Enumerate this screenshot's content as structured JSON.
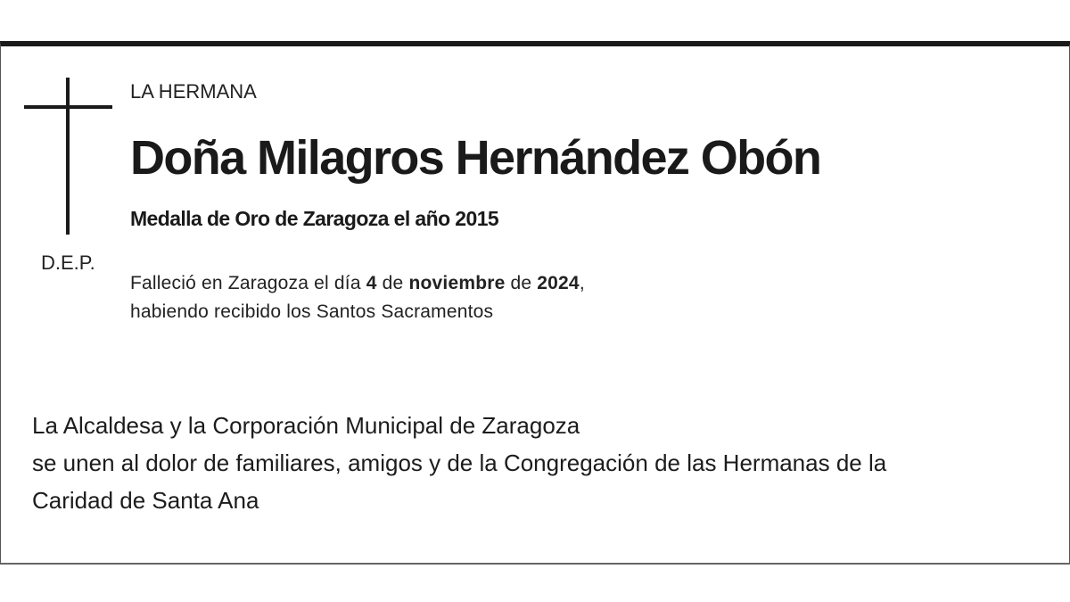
{
  "notice": {
    "symbol_text": "D.E.P.",
    "relation": "LA HERMANA",
    "name": "Doña Milagros Hernández Obón",
    "distinction": "Medalla de Oro de Zaragoza el año 2015",
    "death": {
      "prefix": "Falleció en Zaragoza el día ",
      "day": "4",
      "de1": " de ",
      "month": "noviembre",
      "de2": " de ",
      "year": "2024",
      "suffix": ",",
      "line2": "habiendo recibido los Santos Sacramentos"
    },
    "message": [
      "La Alcaldesa y la Corporación Municipal de Zaragoza",
      "se unen al dolor de familiares, amigos y de la Congregación de las Hermanas de la",
      "Caridad de Santa Ana"
    ]
  }
}
